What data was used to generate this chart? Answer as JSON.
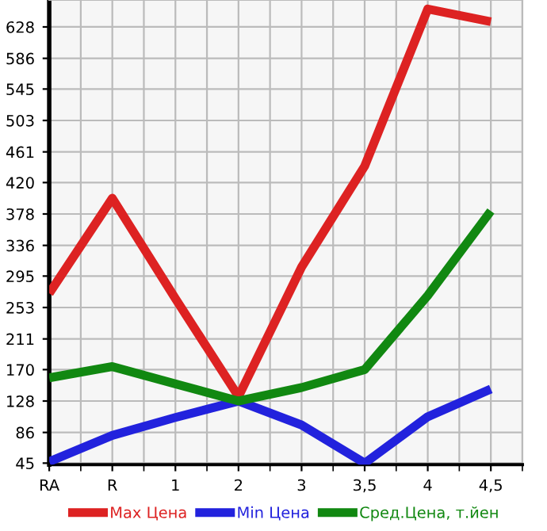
{
  "chart_data": {
    "type": "line",
    "categories": [
      "RA",
      "R",
      "1",
      "2",
      "3",
      "3,5",
      "4",
      "4,5"
    ],
    "series": [
      {
        "name": "Max Цена",
        "color": "#dd2222",
        "values": [
          272,
          399,
          265,
          134,
          307,
          442,
          652,
          635
        ]
      },
      {
        "name": "Min Цена",
        "color": "#2222dd",
        "values": [
          47,
          82,
          106,
          128,
          96,
          45,
          107,
          144
        ]
      },
      {
        "name": "Сред.Цена, т.йен",
        "color": "#118811",
        "values": [
          159,
          174,
          151,
          128,
          146,
          170,
          269,
          382
        ]
      }
    ],
    "ylim": [
      43,
      664
    ],
    "yticks": [
      45,
      86,
      128,
      170,
      211,
      253,
      295,
      336,
      378,
      420,
      461,
      503,
      545,
      586,
      628
    ],
    "grid": true,
    "legend": "bottom",
    "marker": "none",
    "line_style": "solid"
  }
}
